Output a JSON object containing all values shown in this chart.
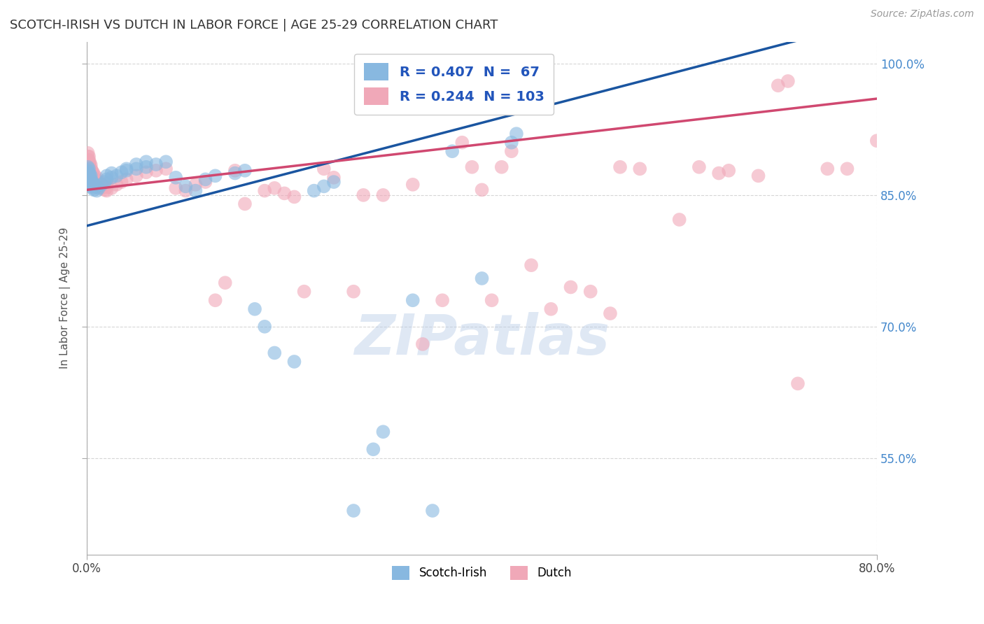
{
  "title": "SCOTCH-IRISH VS DUTCH IN LABOR FORCE | AGE 25-29 CORRELATION CHART",
  "source": "Source: ZipAtlas.com",
  "ylabel": "In Labor Force | Age 25-29",
  "scotch_irish_R": 0.407,
  "scotch_irish_N": 67,
  "dutch_R": 0.244,
  "dutch_N": 103,
  "scotch_irish_color": "#88b8e0",
  "dutch_color": "#f0a8b8",
  "regression_blue": "#1a55a0",
  "regression_pink": "#d04870",
  "background_color": "#ffffff",
  "grid_color": "#cccccc",
  "watermark": "ZIPatlas",
  "x_min": 0.0,
  "x_max": 0.8,
  "y_min": 0.44,
  "y_max": 1.025,
  "y_ticks": [
    0.55,
    0.7,
    0.85,
    1.0
  ],
  "y_tick_labels": [
    "55.0%",
    "70.0%",
    "85.0%",
    "100.0%"
  ],
  "x_ticks": [
    0.0,
    0.8
  ],
  "x_tick_labels": [
    "0.0%",
    "80.0%"
  ],
  "scotch_irish_points": [
    [
      0.001,
      0.87
    ],
    [
      0.001,
      0.875
    ],
    [
      0.001,
      0.878
    ],
    [
      0.001,
      0.882
    ],
    [
      0.002,
      0.868
    ],
    [
      0.002,
      0.873
    ],
    [
      0.002,
      0.876
    ],
    [
      0.002,
      0.88
    ],
    [
      0.003,
      0.865
    ],
    [
      0.003,
      0.87
    ],
    [
      0.003,
      0.874
    ],
    [
      0.004,
      0.862
    ],
    [
      0.004,
      0.868
    ],
    [
      0.004,
      0.872
    ],
    [
      0.005,
      0.86
    ],
    [
      0.005,
      0.866
    ],
    [
      0.006,
      0.858
    ],
    [
      0.006,
      0.864
    ],
    [
      0.007,
      0.856
    ],
    [
      0.007,
      0.862
    ],
    [
      0.01,
      0.855
    ],
    [
      0.01,
      0.86
    ],
    [
      0.012,
      0.858
    ],
    [
      0.015,
      0.862
    ],
    [
      0.018,
      0.865
    ],
    [
      0.02,
      0.868
    ],
    [
      0.02,
      0.872
    ],
    [
      0.025,
      0.87
    ],
    [
      0.025,
      0.875
    ],
    [
      0.03,
      0.872
    ],
    [
      0.035,
      0.876
    ],
    [
      0.04,
      0.878
    ],
    [
      0.04,
      0.88
    ],
    [
      0.05,
      0.88
    ],
    [
      0.05,
      0.885
    ],
    [
      0.06,
      0.882
    ],
    [
      0.06,
      0.888
    ],
    [
      0.07,
      0.885
    ],
    [
      0.08,
      0.888
    ],
    [
      0.09,
      0.87
    ],
    [
      0.1,
      0.86
    ],
    [
      0.11,
      0.855
    ],
    [
      0.12,
      0.868
    ],
    [
      0.13,
      0.872
    ],
    [
      0.15,
      0.875
    ],
    [
      0.16,
      0.878
    ],
    [
      0.17,
      0.72
    ],
    [
      0.18,
      0.7
    ],
    [
      0.19,
      0.67
    ],
    [
      0.21,
      0.66
    ],
    [
      0.23,
      0.855
    ],
    [
      0.24,
      0.86
    ],
    [
      0.25,
      0.865
    ],
    [
      0.27,
      0.49
    ],
    [
      0.29,
      0.56
    ],
    [
      0.3,
      0.58
    ],
    [
      0.31,
      0.975
    ],
    [
      0.315,
      0.98
    ],
    [
      0.33,
      0.73
    ],
    [
      0.35,
      0.49
    ],
    [
      0.37,
      0.9
    ],
    [
      0.4,
      0.755
    ],
    [
      0.43,
      0.91
    ],
    [
      0.435,
      0.92
    ]
  ],
  "dutch_points": [
    [
      0.001,
      0.882
    ],
    [
      0.001,
      0.886
    ],
    [
      0.001,
      0.89
    ],
    [
      0.001,
      0.894
    ],
    [
      0.001,
      0.898
    ],
    [
      0.002,
      0.878
    ],
    [
      0.002,
      0.882
    ],
    [
      0.002,
      0.886
    ],
    [
      0.002,
      0.89
    ],
    [
      0.002,
      0.894
    ],
    [
      0.003,
      0.875
    ],
    [
      0.003,
      0.879
    ],
    [
      0.003,
      0.883
    ],
    [
      0.003,
      0.887
    ],
    [
      0.004,
      0.872
    ],
    [
      0.004,
      0.876
    ],
    [
      0.004,
      0.88
    ],
    [
      0.004,
      0.884
    ],
    [
      0.005,
      0.87
    ],
    [
      0.005,
      0.874
    ],
    [
      0.005,
      0.878
    ],
    [
      0.006,
      0.868
    ],
    [
      0.006,
      0.872
    ],
    [
      0.006,
      0.876
    ],
    [
      0.007,
      0.866
    ],
    [
      0.007,
      0.87
    ],
    [
      0.007,
      0.874
    ],
    [
      0.008,
      0.865
    ],
    [
      0.008,
      0.869
    ],
    [
      0.009,
      0.864
    ],
    [
      0.009,
      0.868
    ],
    [
      0.01,
      0.862
    ],
    [
      0.01,
      0.866
    ],
    [
      0.01,
      0.87
    ],
    [
      0.012,
      0.86
    ],
    [
      0.012,
      0.864
    ],
    [
      0.015,
      0.858
    ],
    [
      0.015,
      0.862
    ],
    [
      0.018,
      0.856
    ],
    [
      0.02,
      0.855
    ],
    [
      0.02,
      0.859
    ],
    [
      0.02,
      0.863
    ],
    [
      0.025,
      0.858
    ],
    [
      0.03,
      0.862
    ],
    [
      0.035,
      0.865
    ],
    [
      0.04,
      0.868
    ],
    [
      0.05,
      0.872
    ],
    [
      0.06,
      0.876
    ],
    [
      0.07,
      0.878
    ],
    [
      0.08,
      0.88
    ],
    [
      0.09,
      0.858
    ],
    [
      0.1,
      0.855
    ],
    [
      0.11,
      0.862
    ],
    [
      0.12,
      0.865
    ],
    [
      0.13,
      0.73
    ],
    [
      0.14,
      0.75
    ],
    [
      0.15,
      0.878
    ],
    [
      0.16,
      0.84
    ],
    [
      0.18,
      0.855
    ],
    [
      0.19,
      0.858
    ],
    [
      0.2,
      0.852
    ],
    [
      0.21,
      0.848
    ],
    [
      0.22,
      0.74
    ],
    [
      0.24,
      0.88
    ],
    [
      0.25,
      0.87
    ],
    [
      0.27,
      0.74
    ],
    [
      0.28,
      0.85
    ],
    [
      0.3,
      0.85
    ],
    [
      0.31,
      0.975
    ],
    [
      0.315,
      0.98
    ],
    [
      0.33,
      0.862
    ],
    [
      0.34,
      0.68
    ],
    [
      0.36,
      0.73
    ],
    [
      0.38,
      0.91
    ],
    [
      0.39,
      0.882
    ],
    [
      0.4,
      0.856
    ],
    [
      0.41,
      0.73
    ],
    [
      0.42,
      0.882
    ],
    [
      0.43,
      0.9
    ],
    [
      0.45,
      0.77
    ],
    [
      0.47,
      0.72
    ],
    [
      0.49,
      0.745
    ],
    [
      0.51,
      0.74
    ],
    [
      0.53,
      0.715
    ],
    [
      0.54,
      0.882
    ],
    [
      0.56,
      0.88
    ],
    [
      0.6,
      0.822
    ],
    [
      0.62,
      0.882
    ],
    [
      0.64,
      0.875
    ],
    [
      0.65,
      0.878
    ],
    [
      0.68,
      0.872
    ],
    [
      0.7,
      0.975
    ],
    [
      0.71,
      0.98
    ],
    [
      0.72,
      0.635
    ],
    [
      0.75,
      0.88
    ],
    [
      0.77,
      0.88
    ],
    [
      0.8,
      0.912
    ]
  ]
}
